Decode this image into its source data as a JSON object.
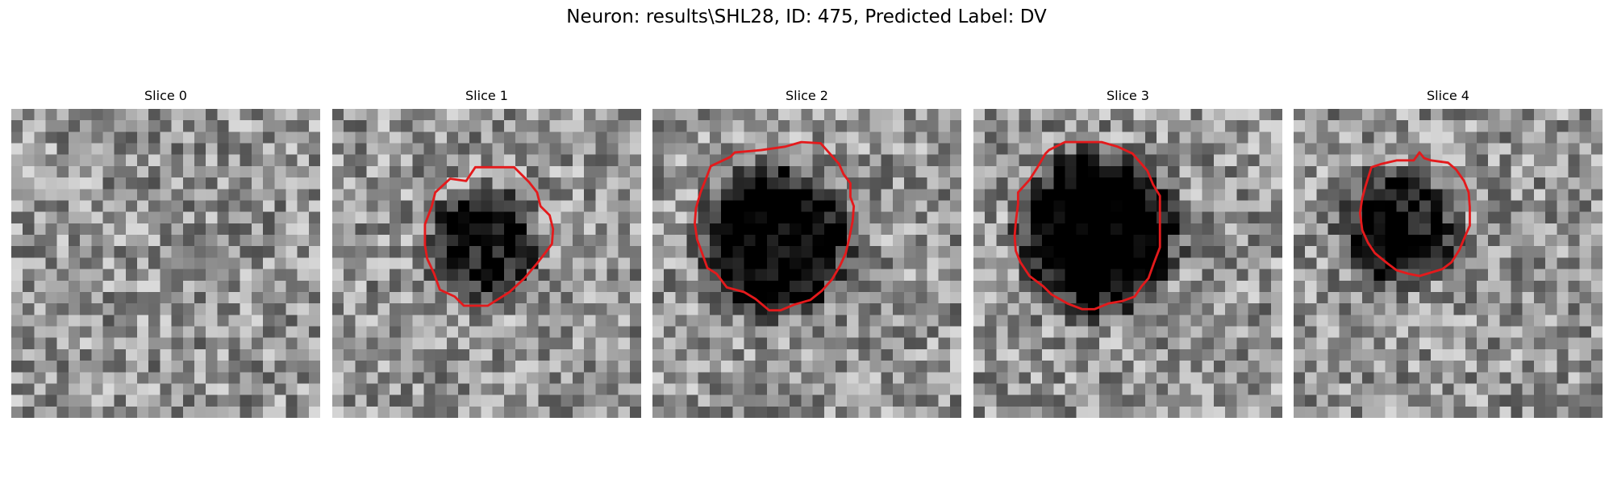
{
  "figure": {
    "title": "Neuron: results\\SHL28, ID: 475, Predicted Label: DV",
    "contour_color": "#e41a1c",
    "colormap": "gray",
    "panels": [
      {
        "title": "Slice 0",
        "has_contour": false,
        "dark_blob": null,
        "contour": []
      },
      {
        "title": "Slice 1",
        "has_contour": true,
        "dark_blob": {
          "cx": 13.2,
          "cy": 11.9,
          "r": 4.2,
          "depth": 0.55
        },
        "contour": [
          [
            10.3,
            6.1
          ],
          [
            11.7,
            6.3
          ],
          [
            12.5,
            5.1
          ],
          [
            15.9,
            5.1
          ],
          [
            17.2,
            6.4
          ],
          [
            17.9,
            7.3
          ],
          [
            18.2,
            8.5
          ],
          [
            19.0,
            9.3
          ],
          [
            19.3,
            10.5
          ],
          [
            19.2,
            11.8
          ],
          [
            18.6,
            12.6
          ],
          [
            17.9,
            13.5
          ],
          [
            16.8,
            14.8
          ],
          [
            15.5,
            16.0
          ],
          [
            13.6,
            17.2
          ],
          [
            11.5,
            17.2
          ],
          [
            10.7,
            16.4
          ],
          [
            9.4,
            15.8
          ],
          [
            8.9,
            14.4
          ],
          [
            8.3,
            13.1
          ],
          [
            8.1,
            11.9
          ],
          [
            8.1,
            10.1
          ],
          [
            8.7,
            8.5
          ],
          [
            9.0,
            7.3
          ]
        ]
      },
      {
        "title": "Slice 2",
        "has_contour": true,
        "dark_blob": {
          "cx": 10.8,
          "cy": 11.5,
          "r": 6.2,
          "depth": 0.7
        },
        "contour": [
          [
            6.8,
            4.2
          ],
          [
            7.2,
            3.8
          ],
          [
            9.5,
            3.6
          ],
          [
            11.6,
            3.3
          ],
          [
            13.0,
            2.9
          ],
          [
            14.7,
            3.0
          ],
          [
            15.5,
            3.9
          ],
          [
            16.3,
            4.8
          ],
          [
            16.7,
            5.7
          ],
          [
            17.3,
            6.5
          ],
          [
            17.3,
            7.7
          ],
          [
            17.6,
            8.5
          ],
          [
            17.5,
            9.8
          ],
          [
            17.2,
            11.3
          ],
          [
            16.9,
            12.6
          ],
          [
            16.4,
            13.7
          ],
          [
            15.7,
            14.9
          ],
          [
            14.8,
            15.9
          ],
          [
            13.8,
            16.7
          ],
          [
            12.4,
            17.1
          ],
          [
            11.2,
            17.6
          ],
          [
            10.2,
            17.6
          ],
          [
            9.0,
            16.6
          ],
          [
            8.0,
            16.0
          ],
          [
            6.5,
            15.6
          ],
          [
            5.6,
            14.4
          ],
          [
            4.8,
            13.9
          ],
          [
            4.3,
            12.5
          ],
          [
            3.9,
            11.4
          ],
          [
            3.7,
            10.0
          ],
          [
            3.8,
            8.7
          ],
          [
            4.2,
            7.3
          ],
          [
            4.6,
            6.3
          ],
          [
            5.1,
            5.0
          ]
        ]
      },
      {
        "title": "Slice 3",
        "has_contour": true,
        "dark_blob": {
          "cx": 10.9,
          "cy": 10.8,
          "r": 6.8,
          "depth": 0.75
        },
        "contour": [
          [
            6.3,
            3.9
          ],
          [
            6.6,
            3.6
          ],
          [
            8.0,
            2.9
          ],
          [
            9.7,
            2.9
          ],
          [
            11.2,
            2.9
          ],
          [
            12.6,
            3.3
          ],
          [
            13.9,
            3.9
          ],
          [
            14.6,
            4.7
          ],
          [
            15.2,
            5.4
          ],
          [
            15.7,
            6.6
          ],
          [
            16.3,
            7.6
          ],
          [
            16.3,
            9.1
          ],
          [
            16.3,
            10.7
          ],
          [
            16.3,
            12.1
          ],
          [
            15.8,
            13.4
          ],
          [
            15.3,
            14.8
          ],
          [
            14.7,
            15.5
          ],
          [
            14.1,
            16.4
          ],
          [
            13.0,
            16.8
          ],
          [
            11.8,
            17.0
          ],
          [
            10.6,
            17.5
          ],
          [
            9.5,
            17.5
          ],
          [
            8.2,
            17.0
          ],
          [
            6.8,
            16.2
          ],
          [
            6.1,
            15.5
          ],
          [
            4.9,
            14.6
          ],
          [
            4.1,
            13.4
          ],
          [
            3.7,
            12.4
          ],
          [
            3.6,
            11.1
          ],
          [
            3.7,
            9.9
          ],
          [
            3.9,
            8.3
          ],
          [
            3.9,
            7.3
          ],
          [
            4.9,
            6.2
          ],
          [
            5.6,
            5.1
          ]
        ]
      },
      {
        "title": "Slice 4",
        "has_contour": true,
        "dark_blob": {
          "cx": 9.2,
          "cy": 10.4,
          "r": 4.6,
          "depth": 0.55
        },
        "contour": [
          [
            6.8,
            5.1
          ],
          [
            7.7,
            4.8
          ],
          [
            9.0,
            4.5
          ],
          [
            10.5,
            4.5
          ],
          [
            11.0,
            3.8
          ],
          [
            11.4,
            4.3
          ],
          [
            12.0,
            4.5
          ],
          [
            13.5,
            4.7
          ],
          [
            14.2,
            5.3
          ],
          [
            14.9,
            6.3
          ],
          [
            15.3,
            7.3
          ],
          [
            15.4,
            8.6
          ],
          [
            15.4,
            10.2
          ],
          [
            15.0,
            11.1
          ],
          [
            14.5,
            12.3
          ],
          [
            13.8,
            13.4
          ],
          [
            13.0,
            14.0
          ],
          [
            12.0,
            14.3
          ],
          [
            11.0,
            14.6
          ],
          [
            10.0,
            14.4
          ],
          [
            9.0,
            14.1
          ],
          [
            8.2,
            13.5
          ],
          [
            7.1,
            12.6
          ],
          [
            6.5,
            11.7
          ],
          [
            6.0,
            10.6
          ],
          [
            5.8,
            9.1
          ],
          [
            6.0,
            7.8
          ],
          [
            6.3,
            6.7
          ]
        ]
      }
    ]
  }
}
